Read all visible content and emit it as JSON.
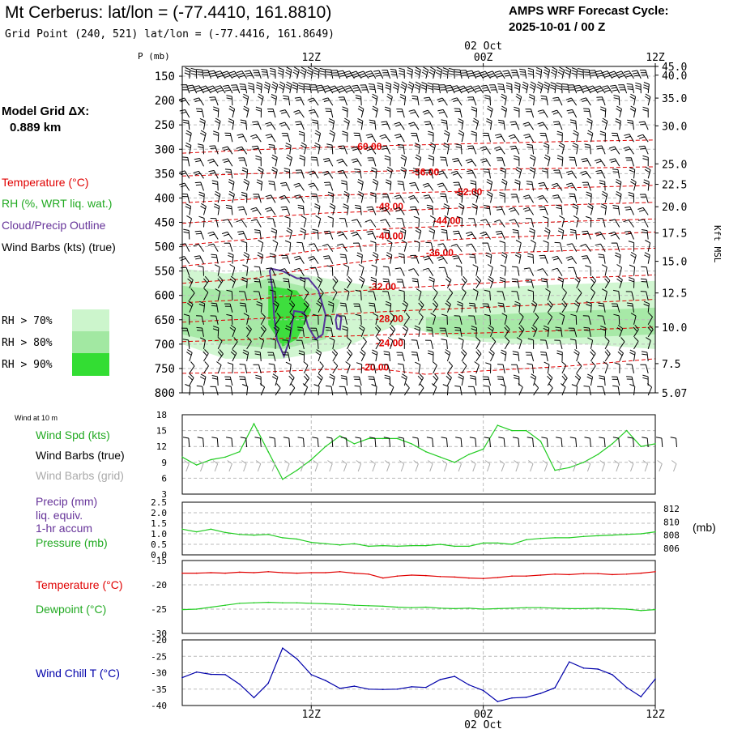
{
  "header": {
    "title": "Mt Cerberus:  lat/lon = (-77.4410, 161.8810)",
    "grid_point": "Grid Point (240, 521) lat/lon = (-77.4416, 161.8649)",
    "cycle_line1": "AMPS WRF Forecast Cycle:",
    "cycle_line2": "2025-10-01 / 00  Z",
    "model_grid_label": "Model Grid ΔX:",
    "model_grid_value": "0.889 km"
  },
  "legend": {
    "temperature": "Temperature (°C)",
    "rh": "RH (%, WRT liq. wat.)",
    "cloud": "Cloud/Precip Outline",
    "wind": "Wind Barbs (kts) (true)",
    "rh70": "RH > 70%",
    "rh80": "RH > 80%",
    "rh90": "RH > 90%"
  },
  "colors": {
    "temperature": "#e00000",
    "rh70": "#ccf5cc",
    "rh80": "#a2e8a2",
    "rh90": "#33dd33",
    "cloud": "#553399",
    "green_line": "#22cc22",
    "wind_chill": "#0000aa"
  },
  "time_axis": {
    "top_labels": [
      {
        "t": 12,
        "label": "12Z"
      },
      {
        "t": 24,
        "label": "00Z"
      },
      {
        "t": 36,
        "label": "12Z"
      }
    ],
    "date_label": "02 Oct",
    "date_t": 24
  },
  "chart_data": [
    {
      "name_key": "upper",
      "type": "heatmap",
      "ylabel_left": "P (mb)",
      "ylabel_right": "Kft MSL",
      "x_range": [
        3,
        36
      ],
      "y_range_mb": [
        800,
        130
      ],
      "p_ticks": [
        150,
        200,
        250,
        300,
        350,
        400,
        450,
        500,
        550,
        600,
        650,
        700,
        750,
        800
      ],
      "kft_ticks": [
        {
          "p": 130,
          "label": "45.0"
        },
        {
          "p": 148,
          "label": "40.0"
        },
        {
          "p": 195,
          "label": "35.0"
        },
        {
          "p": 252,
          "label": "30.0"
        },
        {
          "p": 330,
          "label": "25.0"
        },
        {
          "p": 372,
          "label": "22.5"
        },
        {
          "p": 418,
          "label": "20.0"
        },
        {
          "p": 472,
          "label": "17.5"
        },
        {
          "p": 530,
          "label": "15.0"
        },
        {
          "p": 595,
          "label": "12.5"
        },
        {
          "p": 665,
          "label": "10.0"
        },
        {
          "p": 740,
          "label": "7.5"
        },
        {
          "p": 800,
          "label": "5.07"
        }
      ],
      "isotherms": [
        {
          "label": "-60.00",
          "label_t": 15.0,
          "label_p": 295,
          "points": [
            [
              3,
              308
            ],
            [
              8,
              301
            ],
            [
              13,
              296
            ],
            [
              18,
              292
            ],
            [
              24,
              288
            ],
            [
              30,
              284
            ],
            [
              36,
              281
            ]
          ]
        },
        {
          "label": "-56.00",
          "label_t": 19.0,
          "label_p": 347,
          "points": [
            [
              3,
              355
            ],
            [
              8,
              350
            ],
            [
              13,
              347
            ],
            [
              19,
              344
            ],
            [
              24,
              341
            ],
            [
              30,
              339
            ],
            [
              36,
              336
            ]
          ]
        },
        {
          "label": "-52.00",
          "label_t": 22.0,
          "label_p": 388,
          "points": [
            [
              3,
              410
            ],
            [
              8,
              402
            ],
            [
              13,
              395
            ],
            [
              18,
              390
            ],
            [
              24,
              385
            ],
            [
              30,
              379
            ],
            [
              36,
              374
            ]
          ]
        },
        {
          "label": "-48.00",
          "label_t": 16.5,
          "label_p": 418,
          "points": [
            [
              3,
              452
            ],
            [
              8,
              441
            ],
            [
              13,
              431
            ],
            [
              18,
              426
            ],
            [
              24,
              419
            ],
            [
              30,
              414
            ],
            [
              36,
              409
            ]
          ]
        },
        {
          "label": "-44.00",
          "label_t": 20.5,
          "label_p": 447,
          "points": [
            [
              3,
              497
            ],
            [
              8,
              484
            ],
            [
              13,
              471
            ],
            [
              18,
              462
            ],
            [
              24,
              455
            ],
            [
              30,
              448
            ],
            [
              36,
              443
            ]
          ]
        },
        {
          "label": "-40.00",
          "label_t": 16.5,
          "label_p": 478,
          "points": [
            [
              3,
              540
            ],
            [
              8,
              525
            ],
            [
              13,
              505
            ],
            [
              18,
              492
            ],
            [
              24,
              482
            ],
            [
              30,
              476
            ],
            [
              36,
              470
            ]
          ]
        },
        {
          "label": "-36.00",
          "label_t": 20.0,
          "label_p": 512,
          "points": [
            [
              3,
              575
            ],
            [
              8,
              565
            ],
            [
              13,
              540
            ],
            [
              18,
              522
            ],
            [
              24,
              514
            ],
            [
              30,
              508
            ],
            [
              36,
              503
            ]
          ]
        },
        {
          "label": "-32.00",
          "label_t": 16.0,
          "label_p": 582,
          "points": [
            [
              3,
              615
            ],
            [
              8,
              608
            ],
            [
              13,
              595
            ],
            [
              18,
              585
            ],
            [
              24,
              575
            ],
            [
              30,
              565
            ],
            [
              36,
              558
            ]
          ]
        },
        {
          "label": "-28.00",
          "label_t": 16.5,
          "label_p": 648,
          "points": [
            [
              3,
              655
            ],
            [
              8,
              648
            ],
            [
              13,
              640
            ],
            [
              18,
              632
            ],
            [
              24,
              625
            ],
            [
              30,
              617
            ],
            [
              36,
              608
            ]
          ]
        },
        {
          "label": "-24.00",
          "label_t": 16.5,
          "label_p": 698,
          "points": [
            [
              3,
              695
            ],
            [
              8,
              690
            ],
            [
              13,
              685
            ],
            [
              18,
              680
            ],
            [
              24,
              677
            ],
            [
              30,
              672
            ],
            [
              36,
              665
            ]
          ]
        },
        {
          "label": "-20.00",
          "label_t": 15.5,
          "label_p": 748,
          "points": [
            [
              3,
              760
            ],
            [
              8,
              758
            ],
            [
              13,
              752
            ],
            [
              17,
              752
            ],
            [
              20,
              762
            ],
            [
              24,
              755
            ],
            [
              30,
              745
            ],
            [
              36,
              730
            ]
          ]
        }
      ],
      "rh_regions": [
        {
          "level": 70,
          "points": [
            [
              3,
              545
            ],
            [
              6,
              555
            ],
            [
              9,
              548
            ],
            [
              12,
              560
            ],
            [
              15,
              575
            ],
            [
              18,
              590
            ],
            [
              22,
              590
            ],
            [
              27,
              580
            ],
            [
              32,
              575
            ],
            [
              36,
              570
            ],
            [
              36,
              710
            ],
            [
              31,
              700
            ],
            [
              26,
              700
            ],
            [
              22,
              690
            ],
            [
              18,
              660
            ],
            [
              14,
              710
            ],
            [
              10,
              730
            ],
            [
              6,
              730
            ],
            [
              3,
              700
            ]
          ]
        },
        {
          "level": 80,
          "points": [
            [
              3,
              580
            ],
            [
              6,
              590
            ],
            [
              9,
              565
            ],
            [
              12,
              585
            ],
            [
              14,
              610
            ],
            [
              13,
              690
            ],
            [
              10,
              710
            ],
            [
              6,
              700
            ],
            [
              3,
              680
            ]
          ]
        },
        {
          "level": 80,
          "points": [
            [
              20,
              645
            ],
            [
              24,
              640
            ],
            [
              28,
              635
            ],
            [
              32,
              630
            ],
            [
              36,
              625
            ],
            [
              36,
              680
            ],
            [
              32,
              685
            ],
            [
              28,
              690
            ],
            [
              24,
              688
            ],
            [
              20,
              675
            ]
          ]
        },
        {
          "level": 90,
          "points": [
            [
              9,
              580
            ],
            [
              11,
              590
            ],
            [
              12,
              630
            ],
            [
              11,
              690
            ],
            [
              10,
              705
            ],
            [
              9,
              660
            ]
          ]
        }
      ],
      "cloud_outline": [
        [
          9.2,
          545
        ],
        [
          10,
          550
        ],
        [
          11,
          565
        ],
        [
          11.8,
          565
        ],
        [
          12.5,
          590
        ],
        [
          13.0,
          640
        ],
        [
          12.8,
          680
        ],
        [
          12.3,
          690
        ],
        [
          11.8,
          665
        ],
        [
          11.5,
          635
        ],
        [
          10.8,
          632
        ],
        [
          10.5,
          690
        ],
        [
          10.1,
          725
        ],
        [
          9.6,
          690
        ],
        [
          9.4,
          640
        ],
        [
          9.3,
          590
        ],
        [
          9.1,
          550
        ]
      ],
      "cloud_small": [
        [
          13.8,
          640
        ],
        [
          14.1,
          645
        ],
        [
          14.0,
          670
        ],
        [
          13.8,
          668
        ],
        [
          13.7,
          650
        ]
      ]
    },
    {
      "name_key": "wind",
      "type": "line",
      "title": "Wind at 10 m",
      "labels": [
        "Wind Spd (kts)",
        "Wind Barbs (true)",
        "Wind Barbs (grid)"
      ],
      "y_range": [
        3,
        18
      ],
      "yticks": [
        3,
        6,
        9,
        12,
        15,
        18
      ],
      "x": [
        3,
        4,
        5,
        6,
        7,
        8,
        9,
        10,
        11,
        12,
        13,
        14,
        15,
        16,
        17,
        18,
        19,
        20,
        21,
        22,
        23,
        24,
        25,
        26,
        27,
        28,
        29,
        30,
        31,
        32,
        33,
        34,
        35,
        36
      ],
      "values": [
        10,
        8.5,
        9.5,
        10,
        11,
        16.3,
        11,
        5.8,
        7.5,
        9.5,
        12,
        14,
        12.5,
        13.5,
        13.5,
        13.5,
        12.5,
        11,
        10,
        9,
        10.5,
        11.5,
        16,
        15,
        15,
        13,
        7.5,
        8,
        9,
        10.5,
        12.5,
        15,
        12,
        12.5
      ]
    },
    {
      "name_key": "precip",
      "type": "line",
      "labels": [
        "Precip (mm)",
        "liq. equiv.",
        "1-hr accum",
        "Pressure (mb)"
      ],
      "left_range": [
        0,
        2.5
      ],
      "left_ticks": [
        0.0,
        0.5,
        1.0,
        1.5,
        2.0,
        2.5
      ],
      "right_range": [
        805,
        813
      ],
      "right_ticks": [
        806,
        808,
        810,
        812
      ],
      "right_unit": "(mb)",
      "x": [
        3,
        4,
        5,
        6,
        7,
        8,
        9,
        10,
        11,
        12,
        13,
        14,
        15,
        16,
        17,
        18,
        19,
        20,
        21,
        22,
        23,
        24,
        25,
        26,
        27,
        28,
        29,
        30,
        31,
        32,
        33,
        34,
        35,
        36
      ],
      "pressure": [
        808.9,
        808.5,
        808.9,
        808.4,
        808.1,
        808.0,
        808.1,
        807.6,
        807.4,
        806.9,
        806.7,
        806.5,
        806.7,
        806.3,
        806.4,
        806.3,
        806.4,
        806.4,
        806.6,
        806.3,
        806.3,
        806.8,
        806.8,
        806.6,
        807.3,
        807.5,
        807.6,
        807.6,
        807.8,
        807.9,
        808.0,
        808.1,
        808.2,
        808.5
      ]
    },
    {
      "name_key": "temp",
      "type": "line",
      "labels": [
        "Temperature (°C)",
        "Dewpoint (°C)"
      ],
      "y_range": [
        -30,
        -15
      ],
      "yticks": [
        -30,
        -25,
        -20,
        -15
      ],
      "x": [
        3,
        4,
        5,
        6,
        7,
        8,
        9,
        10,
        11,
        12,
        13,
        14,
        15,
        16,
        17,
        18,
        19,
        20,
        21,
        22,
        23,
        24,
        25,
        26,
        27,
        28,
        29,
        30,
        31,
        32,
        33,
        34,
        35,
        36
      ],
      "temperature": [
        -17.6,
        -17.6,
        -17.5,
        -17.6,
        -17.4,
        -17.5,
        -17.3,
        -17.5,
        -17.6,
        -17.5,
        -17.5,
        -17.3,
        -17.6,
        -17.8,
        -18.6,
        -18.2,
        -18.0,
        -18.1,
        -18.3,
        -18.4,
        -18.6,
        -18.7,
        -18.5,
        -18.2,
        -18.2,
        -18.0,
        -17.8,
        -17.9,
        -17.7,
        -17.7,
        -17.9,
        -17.8,
        -17.6,
        -17.3
      ],
      "dewpoint": [
        -25.1,
        -25.0,
        -24.6,
        -24.2,
        -23.8,
        -23.7,
        -23.6,
        -23.7,
        -23.7,
        -23.8,
        -23.9,
        -24.0,
        -24.2,
        -24.3,
        -24.4,
        -24.6,
        -24.7,
        -24.6,
        -24.8,
        -24.9,
        -24.8,
        -25.0,
        -24.9,
        -24.8,
        -24.7,
        -24.7,
        -24.8,
        -24.9,
        -24.9,
        -24.8,
        -24.9,
        -25.0,
        -25.3,
        -25.1
      ]
    },
    {
      "name_key": "chill",
      "type": "line",
      "labels": [
        "Wind Chill T (°C)"
      ],
      "y_range": [
        -40,
        -20
      ],
      "yticks": [
        -40,
        -35,
        -30,
        -25,
        -20
      ],
      "x": [
        3,
        4,
        5,
        6,
        7,
        8,
        9,
        10,
        11,
        12,
        13,
        14,
        15,
        16,
        17,
        18,
        19,
        20,
        21,
        22,
        23,
        24,
        25,
        26,
        27,
        28,
        29,
        30,
        31,
        32,
        33,
        34,
        35,
        36
      ],
      "values": [
        -31.5,
        -29.8,
        -30.5,
        -30.6,
        -33.5,
        -37.6,
        -33.2,
        -22.5,
        -25.8,
        -30.6,
        -32.4,
        -34.8,
        -34.1,
        -35.0,
        -35.1,
        -35.0,
        -34.3,
        -34.5,
        -32.1,
        -31.1,
        -33.7,
        -35.4,
        -38.8,
        -37.7,
        -37.5,
        -36.3,
        -34.6,
        -26.7,
        -28.6,
        -28.9,
        -30.6,
        -34.5,
        -37.3,
        -31.9
      ]
    }
  ]
}
